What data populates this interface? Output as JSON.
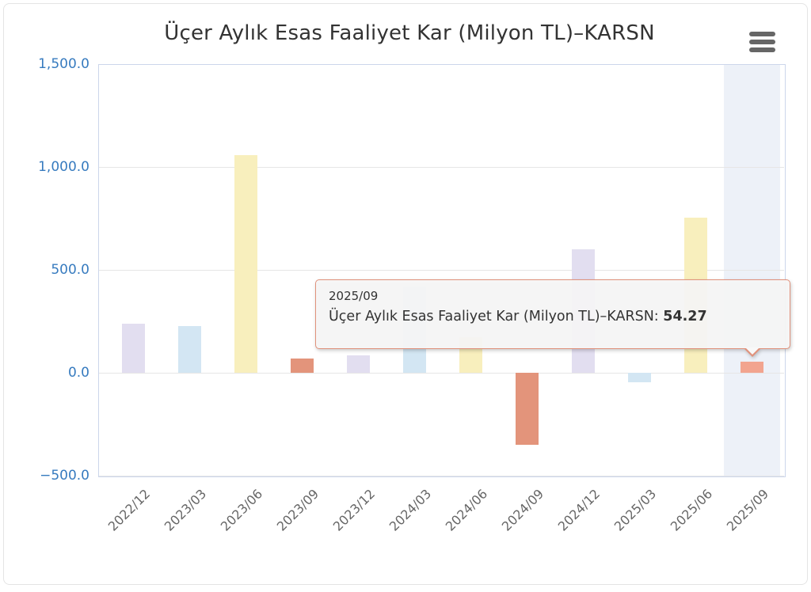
{
  "header": {
    "title": "Üçer Aylık Esas Faaliyet Kar (Milyon TL)–KARSN",
    "menu_icon": "hamburger-icon"
  },
  "chart_data": {
    "type": "bar",
    "title": "Üçer Aylık Esas Faaliyet Kar (Milyon TL)–KARSN",
    "series_name": "Üçer Aylık Esas Faaliyet Kar (Milyon TL)–KARSN",
    "categories": [
      "2022/12",
      "2023/03",
      "2023/06",
      "2023/09",
      "2023/12",
      "2024/03",
      "2024/06",
      "2024/09",
      "2024/12",
      "2025/03",
      "2025/06",
      "2025/09"
    ],
    "values": [
      238,
      227,
      1058,
      70,
      85,
      420,
      175,
      -350,
      600,
      -45,
      755,
      54.27
    ],
    "xlabel": "",
    "ylabel": "",
    "ylim": [
      -500,
      1500
    ],
    "ytick_values": [
      1500,
      1000,
      500,
      0,
      -500
    ],
    "ytick_labels": [
      "1,500.0",
      "1,000.0",
      "500.0",
      "0.0",
      "−500.0"
    ],
    "grid": true,
    "legend": false,
    "bar_color_cycle": [
      "#e2def0",
      "#d3e6f3",
      "#f8efbd",
      "#e3947b"
    ],
    "highlight": {
      "index": 11,
      "bar_color": "#f2a48f",
      "band_color": "#edf1f8"
    }
  },
  "tooltip": {
    "header": "2025/09",
    "label": "Üçer Aylık Esas Faaliyet Kar (Milyon TL)–KARSN: ",
    "value": "54.27"
  },
  "colors": {
    "title": "#333333",
    "axis_label_blue": "#377bbf",
    "x_label_gray": "#666666",
    "gridline": "#e6e6e6",
    "plot_border": "#ccd6eb",
    "tooltip_border": "#e0917b"
  }
}
